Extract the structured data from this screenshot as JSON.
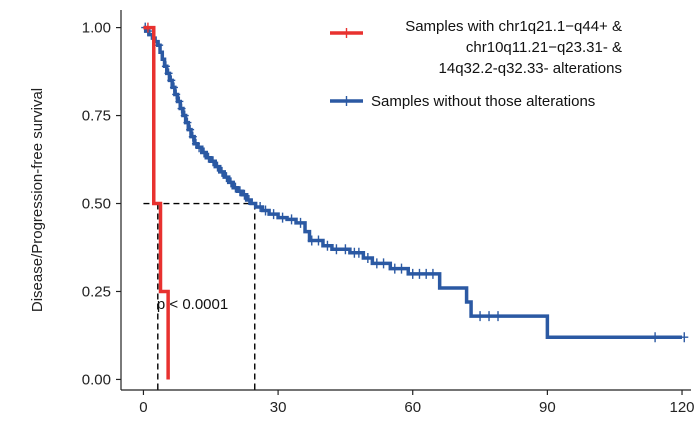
{
  "chart_data": {
    "type": "line",
    "subtype": "kaplan-meier",
    "title": "",
    "xlabel": "",
    "ylabel": "Disease/Progression-free survival",
    "xlim": [
      -5,
      122
    ],
    "ylim": [
      -0.03,
      1.05
    ],
    "x_ticks": [
      0,
      30,
      60,
      90,
      120
    ],
    "y_ticks": [
      0.0,
      0.25,
      0.5,
      0.75,
      1.0
    ],
    "x_tick_labels": [
      "0",
      "30",
      "60",
      "90",
      "120"
    ],
    "y_tick_labels": [
      "0.00",
      "0.25",
      "0.50",
      "0.75",
      "1.00"
    ],
    "grid": false,
    "legend_position": "top-right",
    "annotation": "p < 0.0001",
    "median_lines": [
      {
        "series": 0,
        "x": 3.2,
        "y": 0.5
      },
      {
        "series": 1,
        "x": 24.8,
        "y": 0.5
      }
    ],
    "series": [
      {
        "name": "Samples with  chr1q21.1−q44+ &\nchr10q11.21−q23.31- &\n14q32.2-q32.33- alterations",
        "color": "#e8312f",
        "steps": [
          [
            0,
            1.0
          ],
          [
            2.3,
            1.0
          ],
          [
            2.3,
            0.5
          ],
          [
            3.8,
            0.5
          ],
          [
            3.8,
            0.25
          ],
          [
            5.5,
            0.25
          ],
          [
            5.5,
            0.0
          ]
        ],
        "censored": [
          [
            1.0,
            1.0
          ]
        ]
      },
      {
        "name": "Samples without those alterations",
        "color": "#2b59a3",
        "steps": [
          [
            0,
            1.0
          ],
          [
            0.5,
            1.0
          ],
          [
            0.5,
            0.99
          ],
          [
            1.2,
            0.99
          ],
          [
            1.2,
            0.98
          ],
          [
            2,
            0.98
          ],
          [
            2,
            0.97
          ],
          [
            2.6,
            0.97
          ],
          [
            2.6,
            0.96
          ],
          [
            3.2,
            0.96
          ],
          [
            3.2,
            0.95
          ],
          [
            3.7,
            0.95
          ],
          [
            3.7,
            0.93
          ],
          [
            4.2,
            0.93
          ],
          [
            4.2,
            0.91
          ],
          [
            4.7,
            0.91
          ],
          [
            4.7,
            0.89
          ],
          [
            5.2,
            0.89
          ],
          [
            5.2,
            0.87
          ],
          [
            5.8,
            0.87
          ],
          [
            5.8,
            0.85
          ],
          [
            6.4,
            0.85
          ],
          [
            6.4,
            0.83
          ],
          [
            7.0,
            0.83
          ],
          [
            7.0,
            0.81
          ],
          [
            7.6,
            0.81
          ],
          [
            7.6,
            0.79
          ],
          [
            8.2,
            0.79
          ],
          [
            8.2,
            0.77
          ],
          [
            8.8,
            0.77
          ],
          [
            8.8,
            0.75
          ],
          [
            9.4,
            0.75
          ],
          [
            9.4,
            0.73
          ],
          [
            10.0,
            0.73
          ],
          [
            10.0,
            0.71
          ],
          [
            10.6,
            0.71
          ],
          [
            10.6,
            0.69
          ],
          [
            11.3,
            0.69
          ],
          [
            11.3,
            0.67
          ],
          [
            12.0,
            0.67
          ],
          [
            12.0,
            0.66
          ],
          [
            13.0,
            0.66
          ],
          [
            13.0,
            0.645
          ],
          [
            14.0,
            0.645
          ],
          [
            14.0,
            0.63
          ],
          [
            15.0,
            0.63
          ],
          [
            15.0,
            0.62
          ],
          [
            16.0,
            0.62
          ],
          [
            16.0,
            0.605
          ],
          [
            17.0,
            0.605
          ],
          [
            17.0,
            0.59
          ],
          [
            18.0,
            0.59
          ],
          [
            18.0,
            0.575
          ],
          [
            19.0,
            0.575
          ],
          [
            19.0,
            0.56
          ],
          [
            20.0,
            0.56
          ],
          [
            20.0,
            0.545
          ],
          [
            21.0,
            0.545
          ],
          [
            21.0,
            0.535
          ],
          [
            22.0,
            0.535
          ],
          [
            22.0,
            0.525
          ],
          [
            23.0,
            0.525
          ],
          [
            23.0,
            0.51
          ],
          [
            24.0,
            0.51
          ],
          [
            24.0,
            0.5
          ],
          [
            25.0,
            0.5
          ],
          [
            25.0,
            0.49
          ],
          [
            26.5,
            0.49
          ],
          [
            26.5,
            0.48
          ],
          [
            28.0,
            0.48
          ],
          [
            28.0,
            0.47
          ],
          [
            30.0,
            0.47
          ],
          [
            30.0,
            0.46
          ],
          [
            32.0,
            0.46
          ],
          [
            32.0,
            0.455
          ],
          [
            34.0,
            0.455
          ],
          [
            34.0,
            0.445
          ],
          [
            36.0,
            0.445
          ],
          [
            36.0,
            0.42
          ],
          [
            37.0,
            0.42
          ],
          [
            37.0,
            0.395
          ],
          [
            40.0,
            0.395
          ],
          [
            40.0,
            0.38
          ],
          [
            42.0,
            0.38
          ],
          [
            42.0,
            0.37
          ],
          [
            46.0,
            0.37
          ],
          [
            46.0,
            0.36
          ],
          [
            49.0,
            0.36
          ],
          [
            49.0,
            0.345
          ],
          [
            51.0,
            0.345
          ],
          [
            51.0,
            0.33
          ],
          [
            55.0,
            0.33
          ],
          [
            55.0,
            0.315
          ],
          [
            59.0,
            0.315
          ],
          [
            59.0,
            0.3
          ],
          [
            66.0,
            0.3
          ],
          [
            66.0,
            0.26
          ],
          [
            72.0,
            0.26
          ],
          [
            72.0,
            0.22
          ],
          [
            73.0,
            0.22
          ],
          [
            73.0,
            0.18
          ],
          [
            90.0,
            0.18
          ],
          [
            90.0,
            0.12
          ],
          [
            120.0,
            0.12
          ]
        ],
        "censored": [
          [
            0.4,
            1.0
          ],
          [
            1.2,
            0.99
          ],
          [
            3.5,
            0.95
          ],
          [
            5.0,
            0.89
          ],
          [
            5.6,
            0.87
          ],
          [
            6.2,
            0.85
          ],
          [
            6.8,
            0.83
          ],
          [
            7.3,
            0.81
          ],
          [
            8.0,
            0.79
          ],
          [
            8.5,
            0.77
          ],
          [
            9.2,
            0.75
          ],
          [
            9.8,
            0.73
          ],
          [
            10.4,
            0.71
          ],
          [
            11.0,
            0.69
          ],
          [
            11.7,
            0.67
          ],
          [
            12.4,
            0.66
          ],
          [
            13.5,
            0.645
          ],
          [
            14.5,
            0.63
          ],
          [
            15.5,
            0.62
          ],
          [
            16.5,
            0.605
          ],
          [
            17.5,
            0.59
          ],
          [
            18.5,
            0.575
          ],
          [
            19.5,
            0.56
          ],
          [
            20.5,
            0.545
          ],
          [
            21.5,
            0.535
          ],
          [
            22.5,
            0.525
          ],
          [
            23.5,
            0.51
          ],
          [
            26.0,
            0.49
          ],
          [
            27.2,
            0.48
          ],
          [
            29.0,
            0.47
          ],
          [
            31.0,
            0.46
          ],
          [
            33.0,
            0.455
          ],
          [
            35.0,
            0.445
          ],
          [
            37.5,
            0.395
          ],
          [
            39.0,
            0.395
          ],
          [
            41.0,
            0.38
          ],
          [
            43.0,
            0.37
          ],
          [
            45.0,
            0.37
          ],
          [
            47.0,
            0.36
          ],
          [
            48.0,
            0.36
          ],
          [
            50.0,
            0.345
          ],
          [
            52.0,
            0.33
          ],
          [
            53.5,
            0.33
          ],
          [
            56.0,
            0.315
          ],
          [
            57.5,
            0.315
          ],
          [
            60.0,
            0.3
          ],
          [
            61.5,
            0.3
          ],
          [
            63.0,
            0.3
          ],
          [
            64.5,
            0.3
          ],
          [
            75.0,
            0.18
          ],
          [
            77.0,
            0.18
          ],
          [
            79.0,
            0.18
          ],
          [
            114.0,
            0.12
          ],
          [
            120.5,
            0.12
          ]
        ]
      }
    ]
  }
}
